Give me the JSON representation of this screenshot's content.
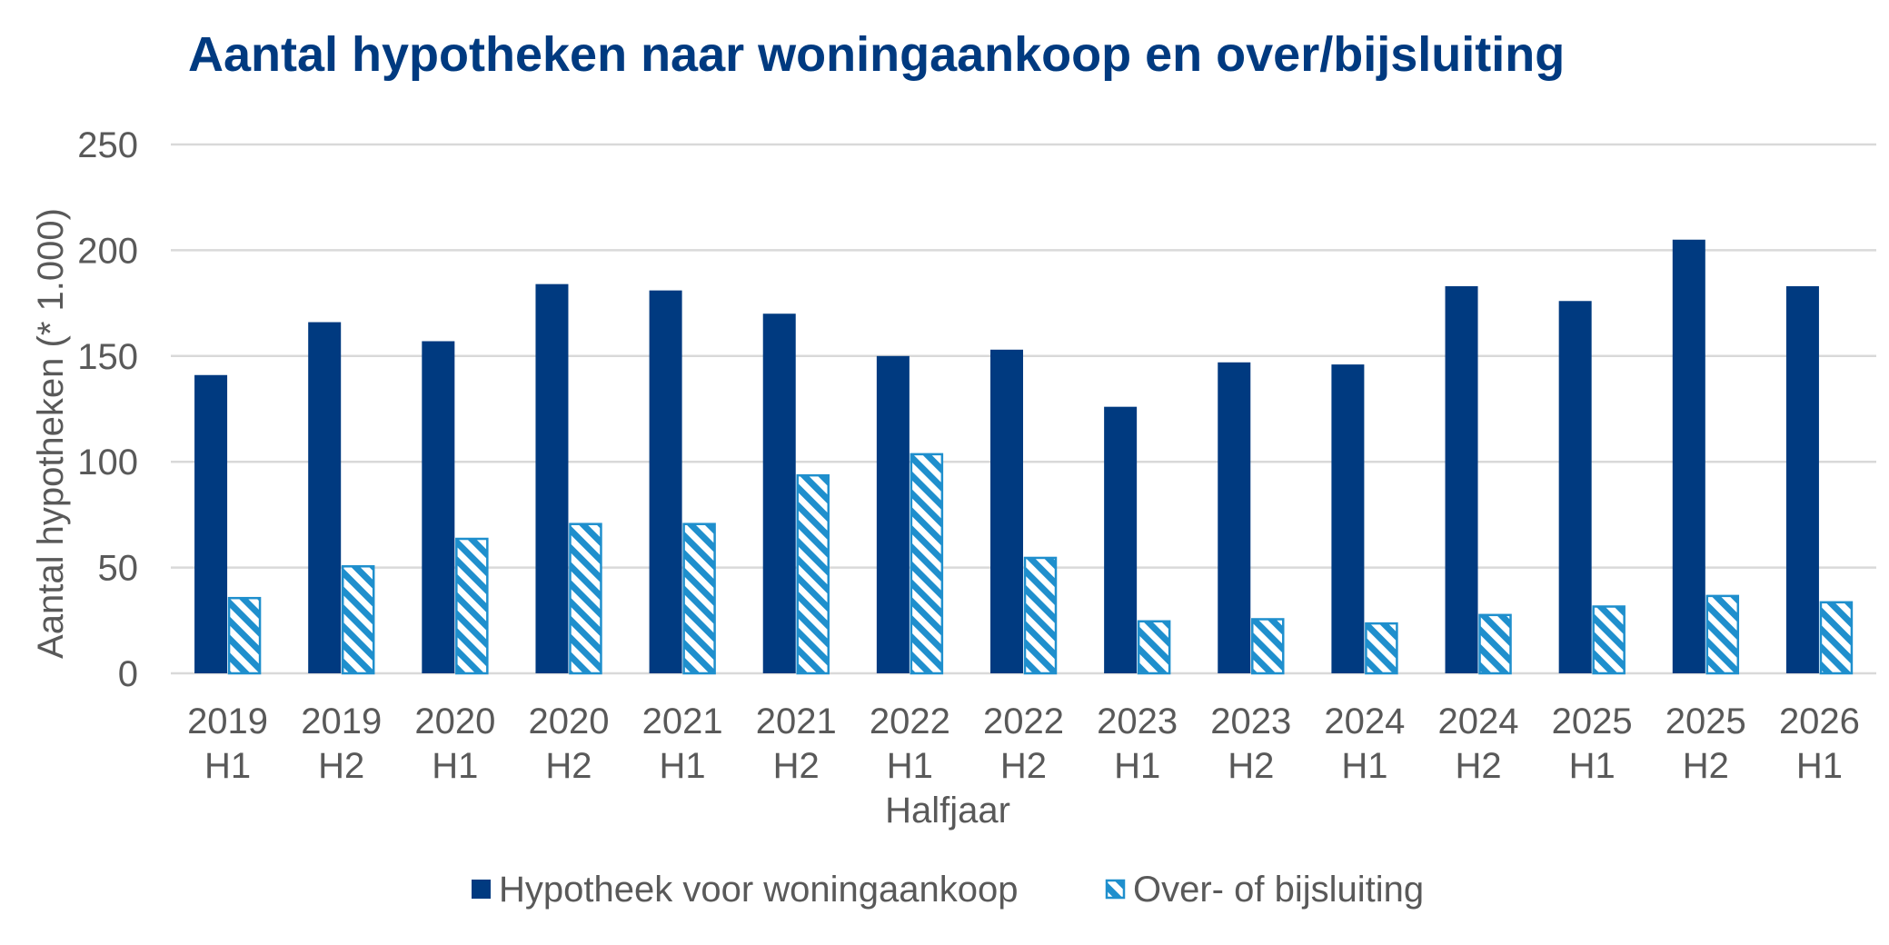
{
  "chart_data": {
    "type": "bar",
    "title": "Aantal hypotheken naar woningaankoop en over/bijsluiting",
    "xlabel": "Halfjaar",
    "ylabel": "Aantal hypotheken (* 1.000)",
    "ylim": [
      0,
      250
    ],
    "yticks": [
      0,
      50,
      100,
      150,
      200,
      250
    ],
    "grid": true,
    "legend_position": "bottom",
    "categories": [
      [
        "2019",
        "H1"
      ],
      [
        "2019",
        "H2"
      ],
      [
        "2020",
        "H1"
      ],
      [
        "2020",
        "H2"
      ],
      [
        "2021",
        "H1"
      ],
      [
        "2021",
        "H2"
      ],
      [
        "2022",
        "H1"
      ],
      [
        "2022",
        "H2"
      ],
      [
        "2023",
        "H1"
      ],
      [
        "2023",
        "H2"
      ],
      [
        "2024",
        "H1"
      ],
      [
        "2024",
        "H2"
      ],
      [
        "2025",
        "H1"
      ],
      [
        "2025",
        "H2"
      ],
      [
        "2026",
        "H1"
      ]
    ],
    "series": [
      {
        "name": "Hypotheek voor woningaankoop",
        "color": "#003A80",
        "pattern": "solid",
        "values": [
          141,
          166,
          157,
          184,
          181,
          170,
          150,
          153,
          126,
          147,
          146,
          183,
          176,
          205,
          183
        ]
      },
      {
        "name": "Over- of bijsluiting",
        "color": "#1F8FCD",
        "pattern": "diagonal-stripes",
        "values": [
          36,
          51,
          64,
          71,
          71,
          94,
          104,
          55,
          25,
          26,
          24,
          28,
          32,
          37,
          34
        ]
      }
    ]
  }
}
